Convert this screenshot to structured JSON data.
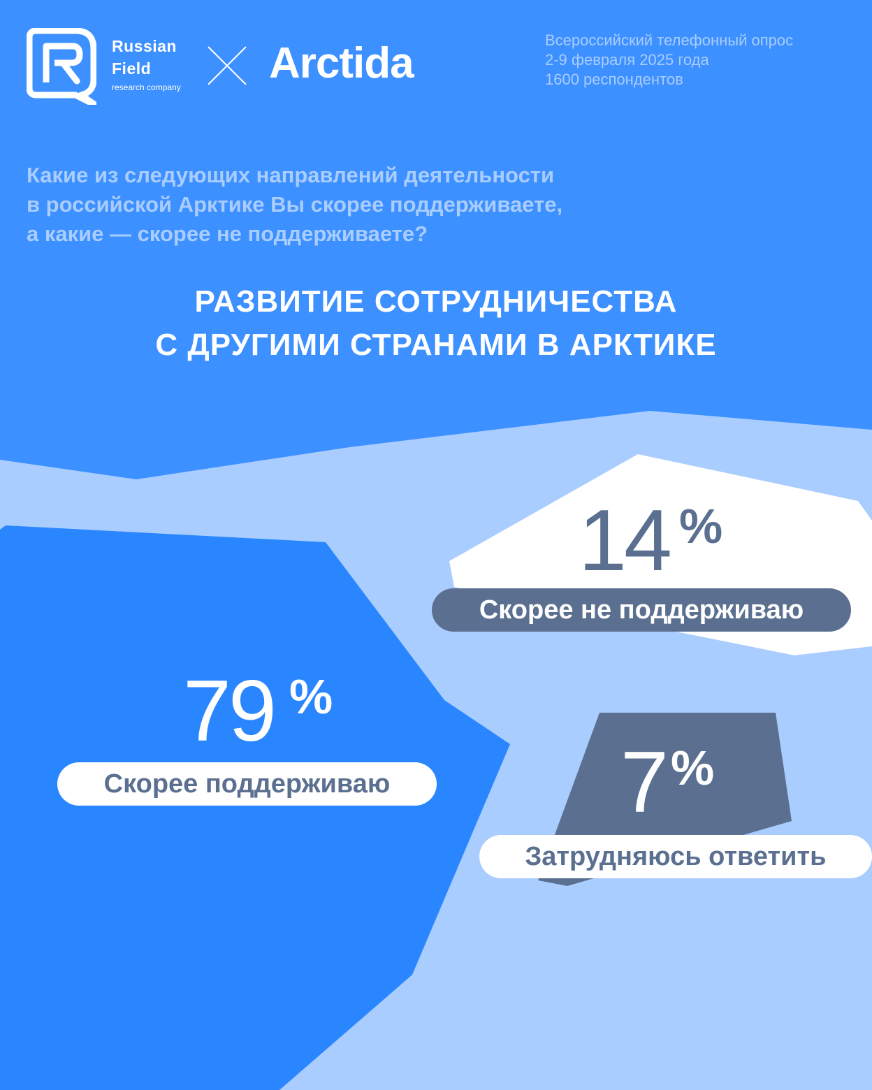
{
  "header": {
    "brand_line1": "Russian",
    "brand_line2": "Field",
    "brand_sub": "research company",
    "partner_logo": "Arctida",
    "logo_icon": "rf-logo-icon",
    "cross_icon": "cross-icon"
  },
  "survey": {
    "line1": "Всероссийский телефонный опрос",
    "line2": "2-9 февраля 2025  года",
    "line3": "1600 респондентов"
  },
  "question": {
    "line1": "Какие из следующих направлений деятельности",
    "line2": "в российской Арктике Вы скорее поддерживаете,",
    "line3": "а какие — скорее не поддерживаете?"
  },
  "colors": {
    "background": "#3d90ff",
    "light_area": "#a9cdff",
    "support_shape": "#2a86ff",
    "not_support_shape": "#ffffff",
    "hard_shape": "#5b7090",
    "slate": "#5b7090"
  },
  "chart_data": {
    "type": "pie",
    "title_line1": "РАЗВИТИЕ СОТРУДНИЧЕСТВА",
    "title_line2": "С ДРУГИМИ СТРАНАМИ В АРКТИКЕ",
    "unit": "%",
    "categories": [
      "Скорее поддерживаю",
      "Скорее не поддерживаю",
      "Затрудняюсь ответить"
    ],
    "values": [
      79,
      14,
      7
    ],
    "value_labels": [
      "79",
      "14",
      "7"
    ]
  }
}
